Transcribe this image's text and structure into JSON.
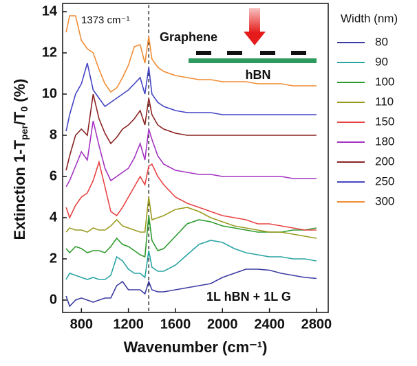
{
  "chart_data": {
    "type": "line",
    "xlabel": "Wavenumber (cm⁻¹)",
    "ylabel": [
      "Extinction 1-T",
      "per",
      "/T",
      "0",
      " (%)"
    ],
    "legend_title": "Width (nm)",
    "legend": "outside-right",
    "annotation": "1373 cm⁻¹",
    "annotation_x": 1373,
    "inset_labels": [
      "Graphene",
      "hBN"
    ],
    "note": "1L hBN + 1L G",
    "x": [
      670,
      700,
      750,
      800,
      850,
      900,
      950,
      1000,
      1050,
      1100,
      1150,
      1200,
      1250,
      1300,
      1340,
      1373,
      1400,
      1450,
      1500,
      1600,
      1700,
      1800,
      1900,
      2000,
      2100,
      2200,
      2300,
      2400,
      2500,
      2600,
      2700,
      2800
    ],
    "series": [
      {
        "name": "80",
        "color": "#3b3ba3",
        "values": [
          0.2,
          -0.3,
          0,
          0.1,
          0,
          -0.1,
          0,
          0.1,
          0.1,
          0.7,
          0.9,
          0.5,
          0.5,
          0.5,
          0.3,
          0.9,
          0.5,
          0.4,
          0.4,
          0.5,
          0.6,
          0.7,
          0.8,
          1.1,
          1.3,
          1.5,
          1.5,
          1.45,
          1.3,
          1.2,
          1.1,
          1.05
        ]
      },
      {
        "name": "90",
        "color": "#2aa3a3",
        "values": [
          1.0,
          1.3,
          1.2,
          1.1,
          1.0,
          1.1,
          1.0,
          1.0,
          1.2,
          2.1,
          1.9,
          1.5,
          1.3,
          1.3,
          1.1,
          2.4,
          1.6,
          1.4,
          1.4,
          1.7,
          2.2,
          2.7,
          2.9,
          2.8,
          2.5,
          2.3,
          2.2,
          2.1,
          2.1,
          2.0,
          2.0,
          1.9
        ]
      },
      {
        "name": "100",
        "color": "#2e9a2e",
        "values": [
          2.5,
          2.3,
          2.6,
          2.5,
          2.3,
          2.4,
          2.4,
          2.3,
          2.6,
          3.0,
          2.7,
          2.6,
          2.4,
          2.2,
          2.1,
          4.1,
          2.9,
          2.4,
          2.5,
          3.1,
          3.7,
          3.9,
          3.8,
          3.6,
          3.5,
          3.4,
          3.3,
          3.3,
          3.3,
          3.4,
          3.4,
          3.5
        ]
      },
      {
        "name": "110",
        "color": "#9a9a1e",
        "values": [
          3.3,
          3.5,
          3.4,
          3.4,
          3.3,
          3.5,
          3.4,
          3.4,
          3.6,
          3.9,
          3.6,
          3.5,
          3.4,
          3.3,
          3.3,
          5.0,
          3.9,
          4.0,
          4.1,
          4.4,
          4.5,
          4.3,
          4.0,
          3.8,
          3.6,
          3.5,
          3.4,
          3.3,
          3.3,
          3.2,
          3.1,
          3.0
        ]
      },
      {
        "name": "150",
        "color": "#e84343",
        "values": [
          4.5,
          4.0,
          4.6,
          5.0,
          5.2,
          5.8,
          6.7,
          5.5,
          4.3,
          4.1,
          4.5,
          5.0,
          5.5,
          6.0,
          5.6,
          6.5,
          6.6,
          6.0,
          5.6,
          5.0,
          4.7,
          4.5,
          4.3,
          4.1,
          4.0,
          3.9,
          3.7,
          3.7,
          3.6,
          3.5,
          3.4,
          3.4
        ]
      },
      {
        "name": "180",
        "color": "#a333c2",
        "values": [
          5.5,
          5.8,
          6.5,
          7.2,
          6.8,
          8.7,
          7.5,
          6.4,
          5.8,
          6.0,
          6.2,
          6.4,
          6.9,
          7.6,
          6.8,
          8.3,
          7.8,
          7.0,
          6.6,
          6.3,
          6.2,
          6.1,
          6.1,
          6.0,
          6.0,
          6.0,
          6.0,
          6.0,
          6.0,
          5.9,
          5.9,
          5.9
        ]
      },
      {
        "name": "200",
        "color": "#8a2222",
        "values": [
          6.3,
          7.0,
          8.0,
          8.3,
          8.0,
          10.0,
          8.8,
          8.1,
          7.6,
          7.9,
          8.3,
          8.5,
          8.8,
          9.2,
          8.5,
          9.8,
          9.0,
          8.5,
          8.3,
          8.1,
          8.0,
          8.0,
          8.0,
          8.0,
          8.0,
          8.0,
          8.0,
          8.0,
          8.0,
          8.0,
          8.0,
          8.0
        ]
      },
      {
        "name": "250",
        "color": "#4444c4",
        "values": [
          8.2,
          9.0,
          10.0,
          10.5,
          11.5,
          10.2,
          9.8,
          9.4,
          9.6,
          9.8,
          10.0,
          10.2,
          10.5,
          10.8,
          10.0,
          11.3,
          10.0,
          9.6,
          9.4,
          9.2,
          9.1,
          9.1,
          9.1,
          9.0,
          9.0,
          9.0,
          9.0,
          9.0,
          9.0,
          9.0,
          9.0,
          9.0
        ]
      },
      {
        "name": "300",
        "color": "#f08c33",
        "values": [
          13.0,
          13.8,
          13.8,
          12.6,
          12.2,
          12.0,
          11.2,
          10.5,
          10.1,
          10.3,
          10.8,
          11.4,
          12.3,
          12.4,
          11.5,
          12.8,
          11.7,
          11.3,
          11.1,
          10.9,
          10.8,
          10.7,
          10.7,
          10.6,
          10.6,
          10.6,
          10.5,
          10.5,
          10.5,
          10.4,
          10.4,
          10.4
        ]
      }
    ],
    "xlim": [
      640,
      2900
    ],
    "xticks": [
      800,
      1200,
      1600,
      2000,
      2400,
      2800
    ],
    "ylim": [
      -0.6,
      14.4
    ],
    "yticks": [
      0,
      2,
      4,
      6,
      8,
      10,
      12,
      14
    ]
  }
}
